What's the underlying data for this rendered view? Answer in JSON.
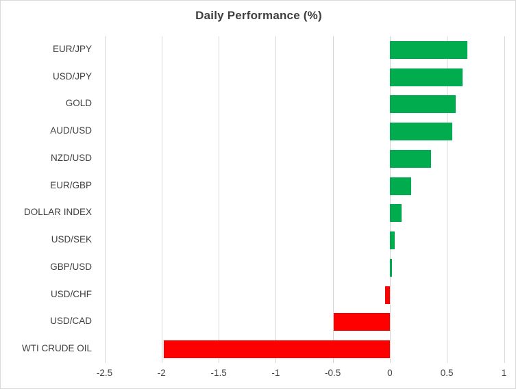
{
  "title": "Daily Performance (%)",
  "colors": {
    "positive_bar": "#00AC4E",
    "negative_bar": "#FF0000",
    "text": "#404040",
    "gridline": "#D6D6D6",
    "border": "#D9D9D9",
    "background": "#FFFFFF"
  },
  "chart_data": {
    "type": "bar",
    "orientation": "horizontal",
    "title": "Daily Performance (%)",
    "categories": [
      "EUR/JPY",
      "USD/JPY",
      "GOLD",
      "AUD/USD",
      "NZD/USD",
      "EUR/GBP",
      "DOLLAR INDEX",
      "USD/SEK",
      "GBP/USD",
      "USD/CHF",
      "USD/CAD",
      "WTI CRUDE OIL"
    ],
    "values": [
      0.68,
      0.64,
      0.58,
      0.55,
      0.36,
      0.19,
      0.1,
      0.04,
      0.02,
      -0.04,
      -0.49,
      -1.98
    ],
    "xlabel": "",
    "ylabel": "",
    "xlim": [
      -2.5,
      1
    ],
    "xticks": [
      -2.5,
      -2,
      -1.5,
      -1,
      -0.5,
      0,
      0.5,
      1
    ],
    "xtick_labels": [
      "-2.5",
      "-2",
      "-1.5",
      "-1",
      "-0.5",
      "0",
      "0.5",
      "1"
    ],
    "grid": true,
    "legend": false,
    "positive_color": "#00AC4E",
    "negative_color": "#FF0000"
  }
}
